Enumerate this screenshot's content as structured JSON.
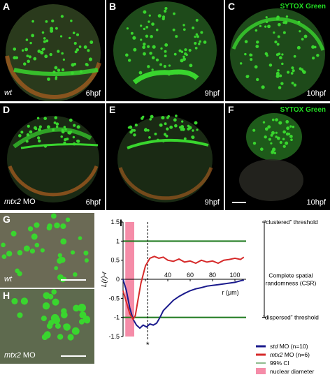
{
  "panels": {
    "A": {
      "letter": "A",
      "condition": "wt",
      "time": "6hpf"
    },
    "B": {
      "letter": "B",
      "time": "9hpf"
    },
    "C": {
      "letter": "C",
      "time": "10hpf",
      "stain": "SYTOX Green"
    },
    "D": {
      "letter": "D",
      "condition_italic": "mtx2",
      "condition_rest": " MO",
      "time": "6hpf"
    },
    "E": {
      "letter": "E",
      "time": "9hpf"
    },
    "F": {
      "letter": "F",
      "time": "10hpf",
      "stain": "SYTOX Green"
    },
    "G": {
      "letter": "G",
      "condition": "wt"
    },
    "H": {
      "letter": "H",
      "condition_italic": "mtx2",
      "condition_rest": " MO"
    }
  },
  "chart_label": "I",
  "colors": {
    "green_fluor": "#39d62e",
    "std": "#1a1a8c",
    "mtx2": "#d62a2a",
    "ci": "#1f7a1f",
    "nuclear": "#f58ca8"
  },
  "chart_data": {
    "type": "line",
    "ylabel": "L(r)-r",
    "xlabel": "r (μm)",
    "xlim": [
      0,
      110
    ],
    "ylim": [
      -1.5,
      1.5
    ],
    "xticks": [
      0,
      20,
      40,
      60,
      80,
      100
    ],
    "yticks": [
      -1.5,
      -1,
      -0.5,
      0,
      0.5,
      1,
      1.5
    ],
    "ytick_labels": [
      "-1.5",
      "-1",
      "-0.5",
      "0",
      "0.5",
      "1",
      "1.5"
    ],
    "ci_upper": 1,
    "ci_lower": -1,
    "nuclear_band": [
      2,
      10
    ],
    "dashed_x": 22,
    "asterisk": "*",
    "series": [
      {
        "name_italic": "std",
        "name_rest": " MO (n=10)",
        "x": [
          0,
          3,
          6,
          9,
          12,
          15,
          18,
          21,
          24,
          27,
          30,
          33,
          36,
          40,
          45,
          50,
          55,
          60,
          65,
          70,
          75,
          80,
          85,
          90,
          95,
          100,
          105,
          108
        ],
        "y": [
          0.0,
          -0.3,
          -0.75,
          -1.05,
          -1.2,
          -1.28,
          -1.2,
          -1.25,
          -1.17,
          -1.2,
          -1.15,
          -1.0,
          -0.82,
          -0.7,
          -0.55,
          -0.45,
          -0.37,
          -0.3,
          -0.25,
          -0.22,
          -0.18,
          -0.16,
          -0.14,
          -0.12,
          -0.1,
          -0.08,
          -0.04,
          -0.02
        ]
      },
      {
        "name_italic": "mtx2",
        "name_rest": " MO (n=6)",
        "x": [
          0,
          3,
          6,
          9,
          11,
          13,
          16,
          20,
          24,
          28,
          32,
          36,
          40,
          45,
          50,
          55,
          60,
          65,
          70,
          75,
          80,
          85,
          90,
          95,
          100,
          105,
          108
        ],
        "y": [
          -0.3,
          -0.6,
          -0.9,
          -1.05,
          -0.95,
          -0.6,
          -0.1,
          0.35,
          0.55,
          0.6,
          0.55,
          0.58,
          0.5,
          0.47,
          0.53,
          0.45,
          0.48,
          0.42,
          0.5,
          0.45,
          0.48,
          0.42,
          0.5,
          0.52,
          0.55,
          0.52,
          0.58
        ]
      }
    ],
    "annotations": {
      "clustered": "“clustered” threshold",
      "csr_line1": "Complete spatial",
      "csr_line2": "randomness (CSR)",
      "dispersed": "“dispersed” threshold"
    },
    "legend": {
      "ci": "99% CI",
      "nuclear": "nuclear diameter"
    }
  }
}
